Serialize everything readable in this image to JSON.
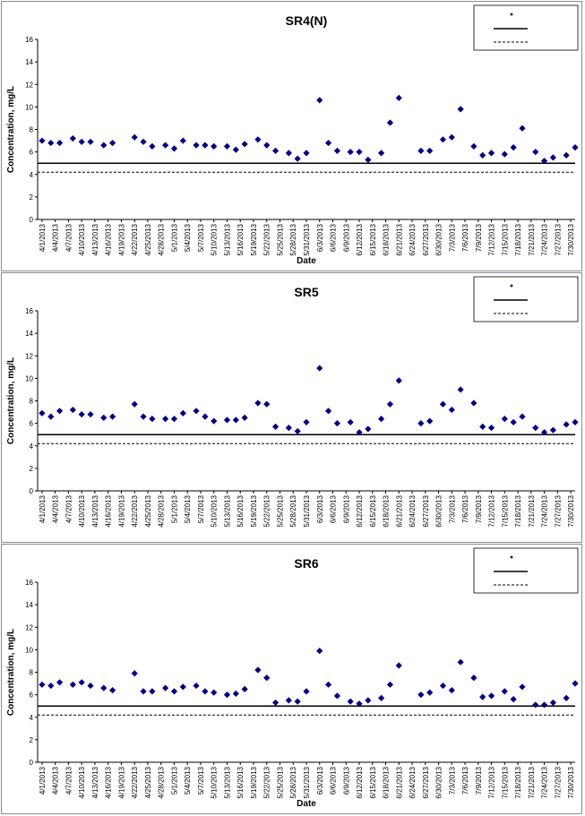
{
  "chart_data": [
    {
      "type": "scatter",
      "title": "SR4(N)",
      "xlabel": "Date",
      "ylabel": "Concentration, mg/L",
      "ylim": [
        0,
        16
      ],
      "yticks": [
        0,
        2,
        4,
        6,
        8,
        10,
        12,
        14,
        16
      ],
      "xlim": [
        "2013-03-31",
        "2013-07-31"
      ],
      "xticks": [
        "4/1/2013",
        "4/4/2013",
        "4/7/2013",
        "4/10/2013",
        "4/13/2013",
        "4/16/2013",
        "4/19/2013",
        "4/22/2013",
        "4/25/2013",
        "4/28/2013",
        "5/1/2013",
        "5/4/2013",
        "5/7/2013",
        "5/10/2013",
        "5/13/2013",
        "5/16/2013",
        "5/19/2013",
        "5/22/2013",
        "5/25/2013",
        "5/28/2013",
        "5/31/2013",
        "6/3/2013",
        "6/6/2013",
        "6/9/2013",
        "6/12/2013",
        "6/15/2013",
        "6/18/2013",
        "6/21/2013",
        "6/24/2013",
        "6/27/2013",
        "6/30/2013",
        "7/3/2013",
        "7/6/2013",
        "7/9/2013",
        "7/12/2013",
        "7/15/2013",
        "7/18/2013",
        "7/21/2013",
        "7/24/2013",
        "7/27/2013",
        "7/30/2013"
      ],
      "grid": false,
      "legend_position": "top-right",
      "lines": [
        {
          "y": 5.0,
          "style": "solid"
        },
        {
          "y": 4.2,
          "style": "dashed"
        }
      ],
      "series": [
        {
          "marker": "diamond",
          "color": "#000080",
          "x": [
            "2013-04-01",
            "2013-04-03",
            "2013-04-05",
            "2013-04-08",
            "2013-04-10",
            "2013-04-12",
            "2013-04-15",
            "2013-04-17",
            "2013-04-22",
            "2013-04-24",
            "2013-04-26",
            "2013-04-29",
            "2013-05-01",
            "2013-05-03",
            "2013-05-06",
            "2013-05-08",
            "2013-05-10",
            "2013-05-13",
            "2013-05-15",
            "2013-05-17",
            "2013-05-20",
            "2013-05-22",
            "2013-05-24",
            "2013-05-27",
            "2013-05-29",
            "2013-05-31",
            "2013-06-03",
            "2013-06-05",
            "2013-06-07",
            "2013-06-10",
            "2013-06-12",
            "2013-06-14",
            "2013-06-17",
            "2013-06-19",
            "2013-06-21",
            "2013-06-26",
            "2013-06-28",
            "2013-07-01",
            "2013-07-03",
            "2013-07-05",
            "2013-07-08",
            "2013-07-10",
            "2013-07-12",
            "2013-07-15",
            "2013-07-17",
            "2013-07-19",
            "2013-07-22",
            "2013-07-24",
            "2013-07-26",
            "2013-07-29",
            "2013-07-31"
          ],
          "y": [
            7.0,
            6.8,
            6.8,
            7.2,
            6.9,
            6.9,
            6.6,
            6.8,
            7.3,
            6.9,
            6.5,
            6.6,
            6.3,
            7.0,
            6.6,
            6.6,
            6.5,
            6.5,
            6.2,
            6.7,
            7.1,
            6.6,
            6.1,
            5.9,
            5.4,
            5.9,
            10.6,
            6.8,
            6.1,
            6.0,
            6.0,
            5.3,
            5.9,
            8.6,
            10.8,
            6.1,
            6.1,
            7.1,
            7.3,
            9.8,
            6.5,
            5.7,
            5.9,
            5.8,
            6.4,
            8.1,
            6.0,
            5.2,
            5.5,
            5.7,
            6.4
          ]
        }
      ]
    },
    {
      "type": "scatter",
      "title": "SR5",
      "xlabel": "",
      "ylabel": "Concentration, mg/L",
      "ylim": [
        0,
        16
      ],
      "yticks": [
        0,
        2,
        4,
        6,
        8,
        10,
        12,
        14,
        16
      ],
      "xlim": [
        "2013-03-31",
        "2013-07-31"
      ],
      "xticks": [
        "4/1/2013",
        "4/4/2013",
        "4/7/2013",
        "4/10/2013",
        "4/13/2013",
        "4/16/2013",
        "4/19/2013",
        "4/22/2013",
        "4/25/2013",
        "4/28/2013",
        "5/1/2013",
        "5/4/2013",
        "5/7/2013",
        "5/10/2013",
        "5/13/2013",
        "5/16/2013",
        "5/19/2013",
        "5/22/2013",
        "5/25/2013",
        "5/28/2013",
        "5/31/2013",
        "6/3/2013",
        "6/6/2013",
        "6/9/2013",
        "6/12/2013",
        "6/15/2013",
        "6/18/2013",
        "6/21/2013",
        "6/24/2013",
        "6/27/2013",
        "6/30/2013",
        "7/3/2013",
        "7/6/2013",
        "7/9/2013",
        "7/12/2013",
        "7/15/2013",
        "7/18/2013",
        "7/21/2013",
        "7/24/2013",
        "7/27/2013",
        "7/30/2013"
      ],
      "grid": false,
      "legend_position": "top-right",
      "lines": [
        {
          "y": 5.0,
          "style": "solid"
        },
        {
          "y": 4.2,
          "style": "dashed"
        }
      ],
      "series": [
        {
          "marker": "diamond",
          "color": "#000080",
          "x": [
            "2013-04-01",
            "2013-04-03",
            "2013-04-05",
            "2013-04-08",
            "2013-04-10",
            "2013-04-12",
            "2013-04-15",
            "2013-04-17",
            "2013-04-22",
            "2013-04-24",
            "2013-04-26",
            "2013-04-29",
            "2013-05-01",
            "2013-05-03",
            "2013-05-06",
            "2013-05-08",
            "2013-05-10",
            "2013-05-13",
            "2013-05-15",
            "2013-05-17",
            "2013-05-20",
            "2013-05-22",
            "2013-05-24",
            "2013-05-27",
            "2013-05-29",
            "2013-05-31",
            "2013-06-03",
            "2013-06-05",
            "2013-06-07",
            "2013-06-10",
            "2013-06-12",
            "2013-06-14",
            "2013-06-17",
            "2013-06-19",
            "2013-06-21",
            "2013-06-26",
            "2013-06-28",
            "2013-07-01",
            "2013-07-03",
            "2013-07-05",
            "2013-07-08",
            "2013-07-10",
            "2013-07-12",
            "2013-07-15",
            "2013-07-17",
            "2013-07-19",
            "2013-07-22",
            "2013-07-24",
            "2013-07-26",
            "2013-07-29",
            "2013-07-31"
          ],
          "y": [
            6.9,
            6.6,
            7.1,
            7.2,
            6.8,
            6.8,
            6.5,
            6.6,
            7.7,
            6.6,
            6.4,
            6.4,
            6.4,
            6.9,
            7.1,
            6.6,
            6.2,
            6.3,
            6.3,
            6.5,
            7.8,
            7.7,
            5.7,
            5.6,
            5.3,
            6.1,
            10.9,
            7.1,
            6.0,
            6.1,
            5.2,
            5.5,
            6.4,
            7.7,
            9.8,
            6.0,
            6.2,
            7.7,
            7.2,
            9.0,
            7.8,
            5.7,
            5.6,
            6.4,
            6.1,
            6.6,
            5.6,
            5.2,
            5.4,
            5.9,
            6.1
          ]
        }
      ]
    },
    {
      "type": "scatter",
      "title": "SR6",
      "xlabel": "Date",
      "ylabel": "Concentration, mg/L",
      "ylim": [
        0,
        16
      ],
      "yticks": [
        0,
        2,
        4,
        6,
        8,
        10,
        12,
        14,
        16
      ],
      "xlim": [
        "2013-03-31",
        "2013-07-31"
      ],
      "xticks": [
        "4/1/2013",
        "4/4/2013",
        "4/7/2013",
        "4/10/2013",
        "4/13/2013",
        "4/16/2013",
        "4/19/2013",
        "4/22/2013",
        "4/25/2013",
        "4/28/2013",
        "5/1/2013",
        "5/4/2013",
        "5/7/2013",
        "5/10/2013",
        "5/13/2013",
        "5/16/2013",
        "5/19/2013",
        "5/22/2013",
        "5/25/2013",
        "5/28/2013",
        "5/31/2013",
        "6/3/2013",
        "6/6/2013",
        "6/9/2013",
        "6/12/2013",
        "6/15/2013",
        "6/18/2013",
        "6/21/2013",
        "6/24/2013",
        "6/27/2013",
        "6/30/2013",
        "7/3/2013",
        "7/6/2013",
        "7/9/2013",
        "7/12/2013",
        "7/15/2013",
        "7/18/2013",
        "7/21/2013",
        "7/24/2013",
        "7/27/2013",
        "7/30/2013"
      ],
      "grid": false,
      "legend_position": "top-right",
      "lines": [
        {
          "y": 5.0,
          "style": "solid"
        },
        {
          "y": 4.2,
          "style": "dashed"
        }
      ],
      "series": [
        {
          "marker": "diamond",
          "color": "#000080",
          "x": [
            "2013-04-01",
            "2013-04-03",
            "2013-04-05",
            "2013-04-08",
            "2013-04-10",
            "2013-04-12",
            "2013-04-15",
            "2013-04-17",
            "2013-04-22",
            "2013-04-24",
            "2013-04-26",
            "2013-04-29",
            "2013-05-01",
            "2013-05-03",
            "2013-05-06",
            "2013-05-08",
            "2013-05-10",
            "2013-05-13",
            "2013-05-15",
            "2013-05-17",
            "2013-05-20",
            "2013-05-22",
            "2013-05-24",
            "2013-05-27",
            "2013-05-29",
            "2013-05-31",
            "2013-06-03",
            "2013-06-05",
            "2013-06-07",
            "2013-06-10",
            "2013-06-12",
            "2013-06-14",
            "2013-06-17",
            "2013-06-19",
            "2013-06-21",
            "2013-06-26",
            "2013-06-28",
            "2013-07-01",
            "2013-07-03",
            "2013-07-05",
            "2013-07-08",
            "2013-07-10",
            "2013-07-12",
            "2013-07-15",
            "2013-07-17",
            "2013-07-19",
            "2013-07-22",
            "2013-07-24",
            "2013-07-26",
            "2013-07-29",
            "2013-07-31"
          ],
          "y": [
            6.9,
            6.8,
            7.1,
            6.9,
            7.1,
            6.8,
            6.6,
            6.4,
            7.9,
            6.3,
            6.3,
            6.6,
            6.3,
            6.7,
            6.8,
            6.3,
            6.2,
            6.0,
            6.1,
            6.5,
            8.2,
            7.5,
            5.3,
            5.5,
            5.4,
            6.3,
            9.9,
            6.9,
            5.9,
            5.4,
            5.2,
            5.5,
            5.7,
            6.9,
            8.6,
            6.0,
            6.2,
            6.8,
            6.4,
            8.9,
            7.5,
            5.8,
            5.9,
            6.3,
            5.6,
            6.7,
            5.1,
            5.1,
            5.3,
            5.7,
            7.0
          ]
        }
      ]
    }
  ]
}
